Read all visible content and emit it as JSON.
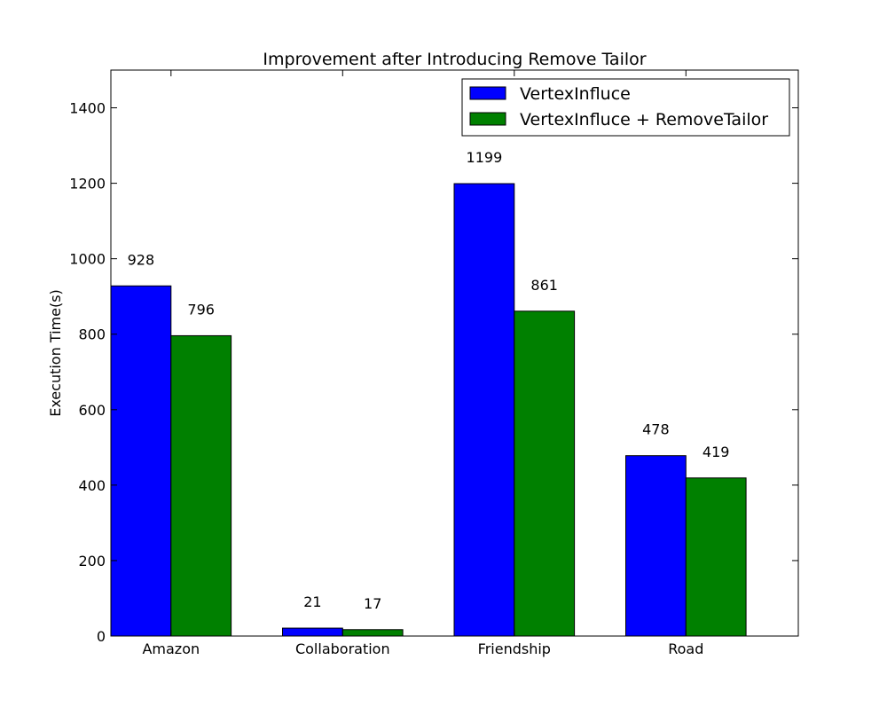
{
  "chart_data": {
    "type": "bar",
    "title": "Improvement after Introducing Remove Tailor",
    "xlabel": "",
    "ylabel": "Execution Time(s)",
    "ylim": [
      0,
      1500
    ],
    "yticks": [
      0,
      200,
      400,
      600,
      800,
      1000,
      1200,
      1400
    ],
    "categories": [
      "Amazon",
      "Collaboration",
      "Friendship",
      "Road"
    ],
    "series": [
      {
        "name": "VertexInfluce",
        "color": "#0000ff",
        "values": [
          928,
          21,
          1199,
          478
        ]
      },
      {
        "name": "VertexInfluce + RemoveTailor",
        "color": "#008000",
        "values": [
          796,
          17,
          861,
          419
        ]
      }
    ],
    "grid": false,
    "legend": "top-right"
  }
}
